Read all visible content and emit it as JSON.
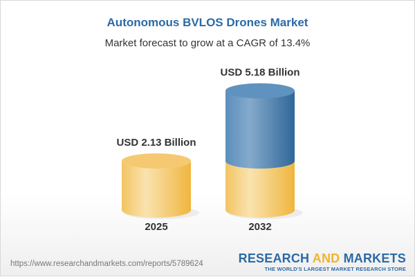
{
  "header": {
    "title": "Autonomous BVLOS Drones Market",
    "subtitle": "Market forecast to grow at a CAGR of 13.4%"
  },
  "chart_data": {
    "type": "bar",
    "style": "3d-cylinder",
    "categories": [
      "2025",
      "2032"
    ],
    "values": [
      2.13,
      5.18
    ],
    "data_labels": [
      "USD 2.13 Billion",
      "USD 5.18 Billion"
    ],
    "unit": "USD Billion",
    "colors": {
      "base": "#f3c35e",
      "growth": "#4f86b8"
    }
  },
  "footer": {
    "url": "https://www.researchandmarkets.com/reports/5789624",
    "logo_part1": "RESEARCH ",
    "logo_part2": "AND",
    "logo_part3": " MARKETS",
    "tagline": "THE WORLD'S LARGEST MARKET RESEARCH STORE"
  }
}
